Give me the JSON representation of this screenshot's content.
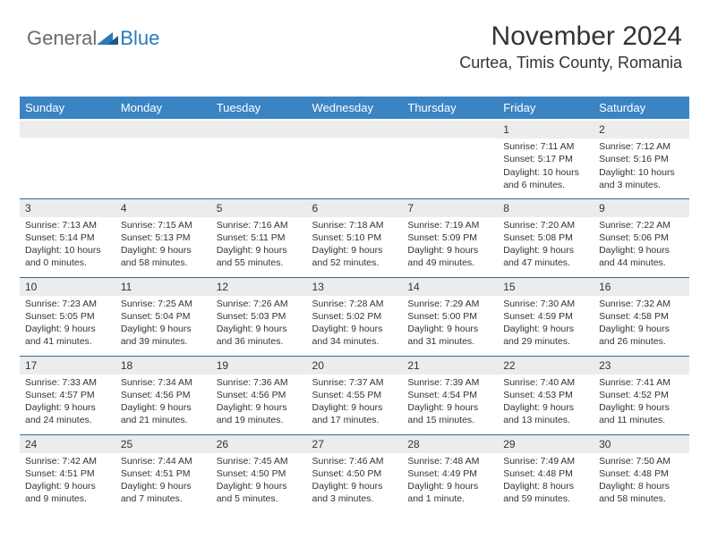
{
  "logo": {
    "word1": "General",
    "word2": "Blue"
  },
  "header": {
    "month": "November 2024",
    "location": "Curtea, Timis County, Romania"
  },
  "style": {
    "accent": "#3b84c4",
    "logo_gray": "#6b6b6b",
    "logo_blue": "#2a7ab9",
    "row_border": "#3b6a8f",
    "daynum_bg": "#ececec",
    "text": "#333333",
    "bg": "#ffffff",
    "month_title_fontsize": 30,
    "location_fontsize": 18,
    "header_fontsize": 13,
    "cell_fontsize": 10.5
  },
  "days": [
    "Sunday",
    "Monday",
    "Tuesday",
    "Wednesday",
    "Thursday",
    "Friday",
    "Saturday"
  ],
  "weeks": [
    [
      null,
      null,
      null,
      null,
      null,
      {
        "n": "1",
        "sr": "Sunrise: 7:11 AM",
        "ss": "Sunset: 5:17 PM",
        "dl1": "Daylight: 10 hours",
        "dl2": "and 6 minutes."
      },
      {
        "n": "2",
        "sr": "Sunrise: 7:12 AM",
        "ss": "Sunset: 5:16 PM",
        "dl1": "Daylight: 10 hours",
        "dl2": "and 3 minutes."
      }
    ],
    [
      {
        "n": "3",
        "sr": "Sunrise: 7:13 AM",
        "ss": "Sunset: 5:14 PM",
        "dl1": "Daylight: 10 hours",
        "dl2": "and 0 minutes."
      },
      {
        "n": "4",
        "sr": "Sunrise: 7:15 AM",
        "ss": "Sunset: 5:13 PM",
        "dl1": "Daylight: 9 hours",
        "dl2": "and 58 minutes."
      },
      {
        "n": "5",
        "sr": "Sunrise: 7:16 AM",
        "ss": "Sunset: 5:11 PM",
        "dl1": "Daylight: 9 hours",
        "dl2": "and 55 minutes."
      },
      {
        "n": "6",
        "sr": "Sunrise: 7:18 AM",
        "ss": "Sunset: 5:10 PM",
        "dl1": "Daylight: 9 hours",
        "dl2": "and 52 minutes."
      },
      {
        "n": "7",
        "sr": "Sunrise: 7:19 AM",
        "ss": "Sunset: 5:09 PM",
        "dl1": "Daylight: 9 hours",
        "dl2": "and 49 minutes."
      },
      {
        "n": "8",
        "sr": "Sunrise: 7:20 AM",
        "ss": "Sunset: 5:08 PM",
        "dl1": "Daylight: 9 hours",
        "dl2": "and 47 minutes."
      },
      {
        "n": "9",
        "sr": "Sunrise: 7:22 AM",
        "ss": "Sunset: 5:06 PM",
        "dl1": "Daylight: 9 hours",
        "dl2": "and 44 minutes."
      }
    ],
    [
      {
        "n": "10",
        "sr": "Sunrise: 7:23 AM",
        "ss": "Sunset: 5:05 PM",
        "dl1": "Daylight: 9 hours",
        "dl2": "and 41 minutes."
      },
      {
        "n": "11",
        "sr": "Sunrise: 7:25 AM",
        "ss": "Sunset: 5:04 PM",
        "dl1": "Daylight: 9 hours",
        "dl2": "and 39 minutes."
      },
      {
        "n": "12",
        "sr": "Sunrise: 7:26 AM",
        "ss": "Sunset: 5:03 PM",
        "dl1": "Daylight: 9 hours",
        "dl2": "and 36 minutes."
      },
      {
        "n": "13",
        "sr": "Sunrise: 7:28 AM",
        "ss": "Sunset: 5:02 PM",
        "dl1": "Daylight: 9 hours",
        "dl2": "and 34 minutes."
      },
      {
        "n": "14",
        "sr": "Sunrise: 7:29 AM",
        "ss": "Sunset: 5:00 PM",
        "dl1": "Daylight: 9 hours",
        "dl2": "and 31 minutes."
      },
      {
        "n": "15",
        "sr": "Sunrise: 7:30 AM",
        "ss": "Sunset: 4:59 PM",
        "dl1": "Daylight: 9 hours",
        "dl2": "and 29 minutes."
      },
      {
        "n": "16",
        "sr": "Sunrise: 7:32 AM",
        "ss": "Sunset: 4:58 PM",
        "dl1": "Daylight: 9 hours",
        "dl2": "and 26 minutes."
      }
    ],
    [
      {
        "n": "17",
        "sr": "Sunrise: 7:33 AM",
        "ss": "Sunset: 4:57 PM",
        "dl1": "Daylight: 9 hours",
        "dl2": "and 24 minutes."
      },
      {
        "n": "18",
        "sr": "Sunrise: 7:34 AM",
        "ss": "Sunset: 4:56 PM",
        "dl1": "Daylight: 9 hours",
        "dl2": "and 21 minutes."
      },
      {
        "n": "19",
        "sr": "Sunrise: 7:36 AM",
        "ss": "Sunset: 4:56 PM",
        "dl1": "Daylight: 9 hours",
        "dl2": "and 19 minutes."
      },
      {
        "n": "20",
        "sr": "Sunrise: 7:37 AM",
        "ss": "Sunset: 4:55 PM",
        "dl1": "Daylight: 9 hours",
        "dl2": "and 17 minutes."
      },
      {
        "n": "21",
        "sr": "Sunrise: 7:39 AM",
        "ss": "Sunset: 4:54 PM",
        "dl1": "Daylight: 9 hours",
        "dl2": "and 15 minutes."
      },
      {
        "n": "22",
        "sr": "Sunrise: 7:40 AM",
        "ss": "Sunset: 4:53 PM",
        "dl1": "Daylight: 9 hours",
        "dl2": "and 13 minutes."
      },
      {
        "n": "23",
        "sr": "Sunrise: 7:41 AM",
        "ss": "Sunset: 4:52 PM",
        "dl1": "Daylight: 9 hours",
        "dl2": "and 11 minutes."
      }
    ],
    [
      {
        "n": "24",
        "sr": "Sunrise: 7:42 AM",
        "ss": "Sunset: 4:51 PM",
        "dl1": "Daylight: 9 hours",
        "dl2": "and 9 minutes."
      },
      {
        "n": "25",
        "sr": "Sunrise: 7:44 AM",
        "ss": "Sunset: 4:51 PM",
        "dl1": "Daylight: 9 hours",
        "dl2": "and 7 minutes."
      },
      {
        "n": "26",
        "sr": "Sunrise: 7:45 AM",
        "ss": "Sunset: 4:50 PM",
        "dl1": "Daylight: 9 hours",
        "dl2": "and 5 minutes."
      },
      {
        "n": "27",
        "sr": "Sunrise: 7:46 AM",
        "ss": "Sunset: 4:50 PM",
        "dl1": "Daylight: 9 hours",
        "dl2": "and 3 minutes."
      },
      {
        "n": "28",
        "sr": "Sunrise: 7:48 AM",
        "ss": "Sunset: 4:49 PM",
        "dl1": "Daylight: 9 hours",
        "dl2": "and 1 minute."
      },
      {
        "n": "29",
        "sr": "Sunrise: 7:49 AM",
        "ss": "Sunset: 4:48 PM",
        "dl1": "Daylight: 8 hours",
        "dl2": "and 59 minutes."
      },
      {
        "n": "30",
        "sr": "Sunrise: 7:50 AM",
        "ss": "Sunset: 4:48 PM",
        "dl1": "Daylight: 8 hours",
        "dl2": "and 58 minutes."
      }
    ]
  ]
}
